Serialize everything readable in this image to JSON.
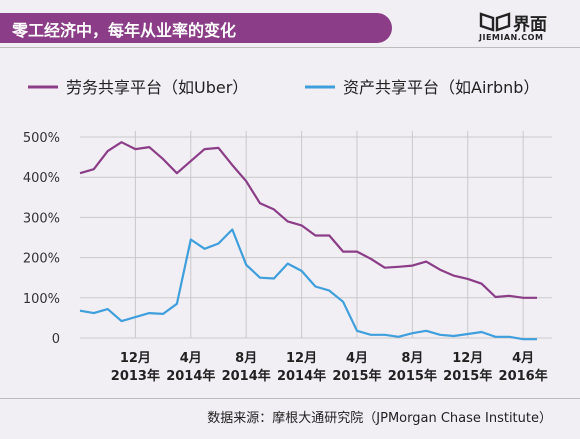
{
  "header": {
    "title": "零工经济中，每年从业率的变化",
    "brand_name": "界面",
    "brand_sub": "JIEMIAN.COM",
    "brand_color": "#8b3d87"
  },
  "footer": {
    "source": "数据来源：摩根大通研究院（JPMorgan Chase Institute）"
  },
  "chart_data": {
    "type": "line",
    "title": "",
    "xlabel": "",
    "ylabel": "",
    "ylim": [
      0,
      500
    ],
    "yticks": [
      "0",
      "100%",
      "200%",
      "300%",
      "400%",
      "500%"
    ],
    "ytick_values": [
      0,
      100,
      200,
      300,
      400,
      500
    ],
    "grid": true,
    "legend": "top",
    "x": [
      "2012-08",
      "2012-09",
      "2012-10",
      "2012-11",
      "2012-12",
      "2013-01",
      "2013-02",
      "2013-03",
      "2013-04",
      "2013-05",
      "2013-06",
      "2013-07",
      "2013-08",
      "2013-09",
      "2013-10",
      "2013-11",
      "2013-12",
      "2014-01",
      "2014-02",
      "2014-03",
      "2014-04",
      "2014-05",
      "2014-06",
      "2014-07",
      "2014-08",
      "2014-09",
      "2014-10",
      "2014-11",
      "2014-12",
      "2015-01",
      "2015-02",
      "2015-03",
      "2015-04",
      "2015-05",
      "2015-06",
      "2015-07",
      "2015-08",
      "2015-09",
      "2015-10",
      "2015-11",
      "2015-12",
      "2016-01",
      "2016-02",
      "2016-03"
    ],
    "xtick_labels": [
      {
        "month": "12月",
        "year": "2013年",
        "at": "2012-12"
      },
      {
        "month": "4月",
        "year": "2014年",
        "at": "2013-04"
      },
      {
        "month": "8月",
        "year": "2014年",
        "at": "2013-08"
      },
      {
        "month": "12月",
        "year": "2014年",
        "at": "2013-12"
      },
      {
        "month": "4月",
        "year": "2015年",
        "at": "2014-04"
      },
      {
        "month": "8月",
        "year": "2015年",
        "at": "2014-08"
      },
      {
        "month": "12月",
        "year": "2015年",
        "at": "2014-12"
      },
      {
        "month": "4月",
        "year": "2016年",
        "at": "2015-04"
      }
    ],
    "series": [
      {
        "name": "劳务共享平台（如Uber）",
        "color": "#8b3d87",
        "values": [
          410,
          420,
          465,
          487,
          470,
          475,
          445,
          410,
          440,
          470,
          473,
          430,
          390,
          335,
          320,
          290,
          280,
          255,
          255,
          215,
          215,
          197,
          175,
          177,
          180,
          190,
          170,
          155,
          147,
          135,
          102,
          105,
          100,
          100,
          100,
          100,
          100,
          100,
          100,
          100,
          100,
          100,
          100,
          100
        ]
      },
      {
        "name": "资产共享平台（如Airbnb）",
        "color": "#3f9fdc",
        "values": [
          68,
          62,
          72,
          42,
          52,
          62,
          60,
          85,
          245,
          222,
          235,
          270,
          182,
          150,
          148,
          185,
          167,
          128,
          118,
          90,
          18,
          8,
          8,
          3,
          12,
          18,
          8,
          5,
          10,
          15,
          3,
          3,
          -3,
          -3,
          -3,
          -3,
          -3,
          -3,
          -3,
          -3,
          -3,
          -3,
          -3,
          -3
        ]
      }
    ]
  }
}
